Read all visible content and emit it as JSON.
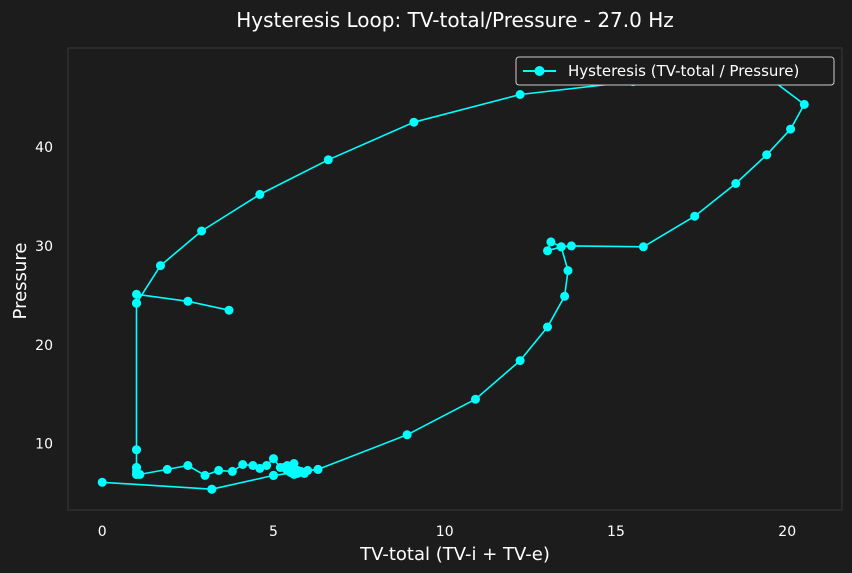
{
  "colors": {
    "background": "#1c1c1c",
    "plot_background": "#1c1c1c",
    "plot_border": "#2e2e2e",
    "series": "#00ffff",
    "text": "#ffffff"
  },
  "chart_data": {
    "type": "line",
    "title": "Hysteresis Loop: TV-total/Pressure - 27.0 Hz",
    "xlabel": "TV-total (TV-i + TV-e)",
    "ylabel": "Pressure",
    "xlim": [
      -1.0,
      21.6
    ],
    "ylim": [
      3.3,
      50.0
    ],
    "xticks": [
      0,
      5,
      10,
      15,
      20
    ],
    "yticks": [
      10,
      20,
      30,
      40
    ],
    "grid": false,
    "legend_position": "top-right",
    "series": [
      {
        "name": "Hysteresis (TV-total / Pressure)",
        "marker": "circle",
        "x": [
          3.7,
          2.5,
          1.0,
          1.0,
          1.0,
          1.0,
          1.0,
          1.0,
          1.1,
          1.9,
          2.5,
          3.0,
          3.4,
          3.8,
          4.1,
          4.4,
          4.6,
          4.8,
          5.0,
          5.2,
          5.3,
          5.4,
          5.5,
          5.6,
          5.7,
          5.8,
          5.9,
          5.6,
          5.5,
          5.4,
          5.3,
          5.7,
          5.9,
          6.0,
          6.3,
          5.0,
          3.2,
          0.0,
          3.2,
          5.0,
          6.3,
          8.9,
          10.9,
          12.2,
          13.0,
          13.5,
          13.6,
          13.4,
          13.1,
          13.0,
          13.4,
          13.7,
          15.8,
          17.3,
          18.5,
          19.4,
          20.1,
          20.5,
          19.5,
          15.5,
          12.2,
          9.1,
          6.6,
          4.6,
          2.9,
          1.7,
          1.0,
          1.0,
          1.0,
          1.0,
          1.0
        ],
        "y": [
          23.5,
          24.4,
          25.1,
          24.2,
          9.4,
          7.6,
          7.2,
          6.9,
          6.9,
          7.4,
          7.8,
          6.8,
          7.3,
          7.2,
          7.9,
          7.8,
          7.5,
          7.8,
          8.5,
          7.6,
          7.6,
          7.8,
          7.5,
          8.0,
          7.3,
          7.2,
          7.1,
          6.9,
          7.1,
          7.3,
          7.6,
          7.0,
          7.0,
          7.3,
          7.4,
          6.8,
          5.4,
          6.1,
          5.4,
          6.8,
          7.4,
          10.9,
          14.5,
          18.4,
          21.8,
          24.9,
          27.5,
          29.9,
          30.4,
          29.5,
          29.9,
          30.0,
          29.9,
          33.0,
          36.3,
          39.2,
          41.8,
          44.3,
          46.9,
          46.6,
          45.3,
          42.5,
          38.7,
          35.2,
          31.5,
          28.0,
          24.2,
          9.4,
          7.6,
          7.2,
          6.9
        ]
      }
    ]
  }
}
